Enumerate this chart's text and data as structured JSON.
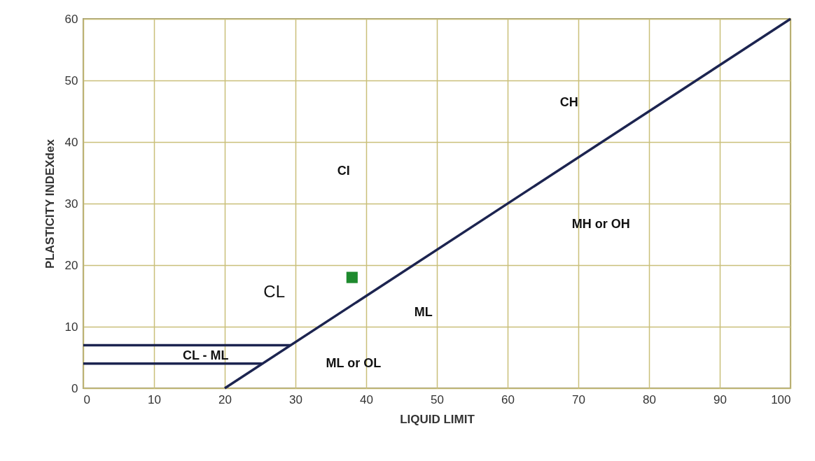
{
  "chart_data": {
    "type": "line",
    "xlabel": "LIQUID LIMIT",
    "ylabel": "PLASTICITY INDEXdex",
    "xlim": [
      0,
      100
    ],
    "ylim": [
      0,
      60
    ],
    "xticks": [
      0,
      10,
      20,
      30,
      40,
      50,
      60,
      70,
      80,
      90,
      100
    ],
    "yticks": [
      0,
      10,
      20,
      30,
      40,
      50,
      60
    ],
    "grid": true,
    "series": [
      {
        "color": "#1c2450",
        "x": [
          20,
          100
        ],
        "values": [
          0,
          60
        ]
      },
      {
        "color": "#1c2450",
        "x": [
          0,
          29.3
        ],
        "values": [
          7,
          7
        ]
      },
      {
        "color": "#1c2450",
        "x": [
          0,
          25.3
        ],
        "values": [
          4,
          4
        ]
      },
      {
        "type": "scatter",
        "color": "#1e8a2e",
        "marker": "square",
        "x": [
          38
        ],
        "values": [
          18
        ]
      }
    ],
    "annotations": [
      "CH",
      "CI",
      "MH or OH",
      "CL",
      "ML",
      "CL - ML",
      "ML or OL"
    ]
  }
}
